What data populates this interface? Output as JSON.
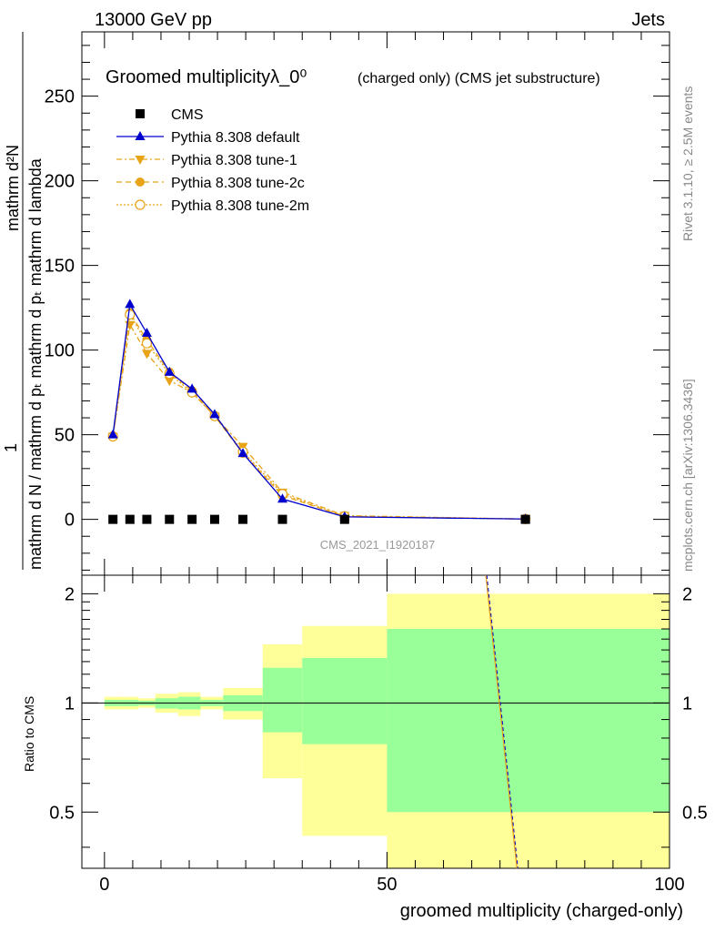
{
  "header": {
    "left": "13000 GeV pp",
    "right": "Jets"
  },
  "side_labels": {
    "rivet": "Rivet 3.1.10, ≥ 2.5M events",
    "mcplots": "mcplots.cern.ch [arXiv:1306.3436]"
  },
  "colors": {
    "cms": "#000000",
    "default": "#0000cc",
    "tunes": "#e8a317",
    "green_band": "#99ff99",
    "yellow_band": "#ffff99"
  },
  "chart_data": [
    {
      "type": "line",
      "title": "Groomed multiplicityλ_0⁰",
      "title_suffix": "(charged only) (CMS jet substructure)",
      "ylabel": "1/(mathrm d N / mathrm d p_T) mathrm d²N/(mathrm d p_T mathrm d lambda)",
      "ylabel_numer": "mathrm d²N",
      "ylabel_denom": "mathrm d N / mathrm d pₜ mathrm d pₜ mathrm d lambda",
      "ylabel_one": "1",
      "xlim": [
        -4,
        100
      ],
      "ylim": [
        -33,
        288
      ],
      "yticks": [
        0,
        50,
        100,
        150,
        200,
        250
      ],
      "watermark": "CMS_2021_I1920187",
      "legend_position": "top-left",
      "x": [
        1.5,
        4.5,
        7.5,
        11.5,
        15.5,
        19.5,
        24.5,
        31.5,
        42.5,
        74.5
      ],
      "series": [
        {
          "name": "CMS",
          "style": "cms",
          "x": [
            1.5,
            4.5,
            7.5,
            11.5,
            15.5,
            19.5,
            24.5,
            31.5,
            42.5,
            74.5
          ],
          "values": [
            0,
            0,
            0,
            0,
            0,
            0,
            0,
            0,
            0,
            0
          ]
        },
        {
          "name": "Pythia 8.308 default",
          "style": "default",
          "values": [
            50,
            127,
            110,
            87,
            77,
            62,
            39,
            12,
            1.5,
            0.2
          ]
        },
        {
          "name": "Pythia 8.308 tune-1",
          "style": "tune1",
          "values": [
            49,
            115,
            98,
            82,
            75,
            61,
            43,
            16,
            2.2,
            0.2
          ]
        },
        {
          "name": "Pythia 8.308 tune-2c",
          "style": "tune2c",
          "values": [
            49,
            122,
            106,
            87,
            76,
            61,
            39,
            14,
            1.8,
            0.2
          ]
        },
        {
          "name": "Pythia 8.308 tune-2m",
          "style": "tune2m",
          "values": [
            49,
            121,
            104,
            86,
            75,
            61,
            40,
            15,
            1.8,
            0.2
          ]
        }
      ]
    },
    {
      "type": "area",
      "ylabel": "Ratio to CMS",
      "xlabel": "groomed multiplicity (charged-only)",
      "xlim": [
        -4,
        100
      ],
      "ylim": [
        0.35,
        2.25
      ],
      "yticks": [
        0.5,
        1,
        2
      ],
      "xticks": [
        0,
        50,
        100
      ],
      "bins": [
        {
          "lo": 0,
          "hi": 3,
          "green": [
            0.98,
            1.02
          ],
          "yellow": [
            0.96,
            1.04
          ]
        },
        {
          "lo": 3,
          "hi": 6,
          "green": [
            0.98,
            1.02
          ],
          "yellow": [
            0.96,
            1.04
          ]
        },
        {
          "lo": 6,
          "hi": 9,
          "green": [
            0.985,
            1.015
          ],
          "yellow": [
            0.97,
            1.03
          ]
        },
        {
          "lo": 9,
          "hi": 13,
          "green": [
            0.965,
            1.03
          ],
          "yellow": [
            0.94,
            1.06
          ]
        },
        {
          "lo": 13,
          "hi": 17,
          "green": [
            0.96,
            1.04
          ],
          "yellow": [
            0.92,
            1.07
          ]
        },
        {
          "lo": 17,
          "hi": 21,
          "green": [
            0.98,
            1.02
          ],
          "yellow": [
            0.96,
            1.04
          ]
        },
        {
          "lo": 21,
          "hi": 28,
          "green": [
            0.95,
            1.05
          ],
          "yellow": [
            0.9,
            1.1
          ]
        },
        {
          "lo": 28,
          "hi": 35,
          "green": [
            0.83,
            1.25
          ],
          "yellow": [
            0.62,
            1.45
          ]
        },
        {
          "lo": 35,
          "hi": 50,
          "green": [
            0.77,
            1.33
          ],
          "yellow": [
            0.43,
            1.63
          ]
        },
        {
          "lo": 50,
          "hi": 100,
          "green": [
            0.5,
            1.6
          ],
          "yellow": [
            0.35,
            2.0
          ]
        }
      ],
      "ratio_line": {
        "x": [
          67.5,
          73
        ],
        "values": [
          2.25,
          0.35
        ]
      }
    }
  ]
}
